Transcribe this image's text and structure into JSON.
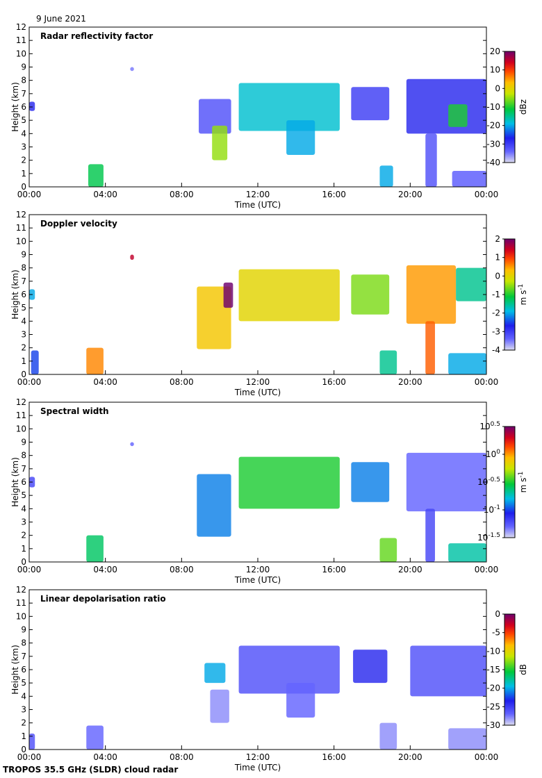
{
  "header": {
    "date": "9 June 2021"
  },
  "footer": {
    "credit": "TROPOS 35.5 GHz (SLDR) cloud radar"
  },
  "chart_data": [
    {
      "type": "heatmap",
      "title": "Radar reflectivity factor",
      "xlabel": "Time (UTC)",
      "ylabel": "Height (km)",
      "xlim": [
        0,
        24
      ],
      "ylim": [
        0,
        12
      ],
      "x_ticks": [
        "00:00",
        "04:00",
        "08:00",
        "12:00",
        "16:00",
        "20:00",
        "00:00"
      ],
      "y_ticks": [
        "0",
        "1",
        "2",
        "3",
        "4",
        "5",
        "6",
        "7",
        "8",
        "9",
        "10",
        "11",
        "12"
      ],
      "colorbar": {
        "label": "dBz",
        "min": -40,
        "max": 20,
        "ticks": [
          "20",
          "10",
          "0",
          "-10",
          "-20",
          "-30",
          "-40"
        ],
        "scale": "linear"
      },
      "cloud_regions": [
        {
          "t0": 0.0,
          "t1": 0.3,
          "h0": 5.7,
          "h1": 6.4,
          "value": -28
        },
        {
          "t0": 3.1,
          "t1": 3.9,
          "h0": 0.0,
          "h1": 1.7,
          "value": -12
        },
        {
          "t0": 5.3,
          "t1": 5.5,
          "h0": 8.7,
          "h1": 9.0,
          "value": -35
        },
        {
          "t0": 8.9,
          "t1": 10.6,
          "h0": 4.0,
          "h1": 6.6,
          "value": -32
        },
        {
          "t0": 9.6,
          "t1": 10.4,
          "h0": 2.0,
          "h1": 4.6,
          "value": -5
        },
        {
          "t0": 11.0,
          "t1": 16.3,
          "h0": 4.2,
          "h1": 7.8,
          "value": -18
        },
        {
          "t0": 13.5,
          "t1": 15.0,
          "h0": 2.4,
          "h1": 5.0,
          "value": -20
        },
        {
          "t0": 16.9,
          "t1": 18.9,
          "h0": 5.0,
          "h1": 7.5,
          "value": -30
        },
        {
          "t0": 18.4,
          "t1": 19.1,
          "h0": 0.0,
          "h1": 1.6,
          "value": -20
        },
        {
          "t0": 19.8,
          "t1": 24.0,
          "h0": 4.0,
          "h1": 8.1,
          "value": -28
        },
        {
          "t0": 20.8,
          "t1": 21.4,
          "h0": 0.0,
          "h1": 4.0,
          "value": -32
        },
        {
          "t0": 22.0,
          "t1": 23.0,
          "h0": 4.5,
          "h1": 6.2,
          "value": -10
        },
        {
          "t0": 22.2,
          "t1": 24.0,
          "h0": 0.0,
          "h1": 1.2,
          "value": -33
        }
      ]
    },
    {
      "type": "heatmap",
      "title": "Doppler velocity",
      "xlabel": "Time (UTC)",
      "ylabel": "Height (km)",
      "xlim": [
        0,
        24
      ],
      "ylim": [
        0,
        12
      ],
      "x_ticks": [
        "00:00",
        "04:00",
        "08:00",
        "12:00",
        "16:00",
        "20:00",
        "00:00"
      ],
      "y_ticks": [
        "0",
        "1",
        "2",
        "3",
        "4",
        "5",
        "6",
        "7",
        "8",
        "9",
        "10",
        "11",
        "12"
      ],
      "colorbar": {
        "label": "m s",
        "label_sup": "-1",
        "min": -4,
        "max": 2,
        "ticks": [
          "2",
          "1",
          "0",
          "-1",
          "-2",
          "-3",
          "-4"
        ],
        "scale": "linear"
      },
      "cloud_regions": [
        {
          "t0": 0.0,
          "t1": 0.3,
          "h0": 5.6,
          "h1": 6.4,
          "value": -2.0
        },
        {
          "t0": 0.1,
          "t1": 0.5,
          "h0": 0.0,
          "h1": 1.8,
          "value": -2.5
        },
        {
          "t0": 3.0,
          "t1": 3.9,
          "h0": 0.0,
          "h1": 2.0,
          "value": 0.6
        },
        {
          "t0": 5.3,
          "t1": 5.5,
          "h0": 8.6,
          "h1": 9.0,
          "value": 1.5
        },
        {
          "t0": 8.8,
          "t1": 10.6,
          "h0": 1.9,
          "h1": 6.6,
          "value": 0.2
        },
        {
          "t0": 10.2,
          "t1": 10.7,
          "h0": 5.0,
          "h1": 6.9,
          "value": 2.0
        },
        {
          "t0": 11.0,
          "t1": 16.3,
          "h0": 4.0,
          "h1": 7.9,
          "value": 0.0
        },
        {
          "t0": 16.9,
          "t1": 18.9,
          "h0": 4.5,
          "h1": 7.5,
          "value": -0.6
        },
        {
          "t0": 18.4,
          "t1": 19.3,
          "h0": 0.0,
          "h1": 1.8,
          "value": -1.5
        },
        {
          "t0": 19.8,
          "t1": 22.4,
          "h0": 3.8,
          "h1": 8.2,
          "value": 0.5
        },
        {
          "t0": 22.4,
          "t1": 24.0,
          "h0": 5.5,
          "h1": 8.0,
          "value": -1.5
        },
        {
          "t0": 20.8,
          "t1": 21.3,
          "h0": 0.0,
          "h1": 4.0,
          "value": 0.8
        },
        {
          "t0": 22.0,
          "t1": 24.0,
          "h0": 0.0,
          "h1": 1.6,
          "value": -2.0
        }
      ]
    },
    {
      "type": "heatmap",
      "title": "Spectral width",
      "xlabel": "Time (UTC)",
      "ylabel": "Height (km)",
      "xlim": [
        0,
        24
      ],
      "ylim": [
        0,
        12
      ],
      "x_ticks": [
        "00:00",
        "04:00",
        "08:00",
        "12:00",
        "16:00",
        "20:00",
        "00:00"
      ],
      "y_ticks": [
        "0",
        "1",
        "2",
        "3",
        "4",
        "5",
        "6",
        "7",
        "8",
        "9",
        "10",
        "11",
        "12"
      ],
      "colorbar": {
        "label": "m s",
        "label_sup": "-1",
        "min": -1.5,
        "max": 0.5,
        "ticks": [
          "10^0.5",
          "10^0",
          "10^-0.5",
          "10^-1",
          "10^-1.5"
        ],
        "scale": "log10"
      },
      "cloud_regions": [
        {
          "t0": 0.0,
          "t1": 0.3,
          "h0": 5.6,
          "h1": 6.4,
          "value": -1.2
        },
        {
          "t0": 3.0,
          "t1": 3.9,
          "h0": 0.0,
          "h1": 2.0,
          "value": -0.6
        },
        {
          "t0": 5.3,
          "t1": 5.5,
          "h0": 8.7,
          "h1": 9.0,
          "value": -1.3
        },
        {
          "t0": 8.8,
          "t1": 10.6,
          "h0": 1.9,
          "h1": 6.6,
          "value": -0.9
        },
        {
          "t0": 11.0,
          "t1": 16.3,
          "h0": 4.0,
          "h1": 7.9,
          "value": -0.5
        },
        {
          "t0": 16.9,
          "t1": 18.9,
          "h0": 4.5,
          "h1": 7.5,
          "value": -0.9
        },
        {
          "t0": 18.4,
          "t1": 19.3,
          "h0": 0.0,
          "h1": 1.8,
          "value": -0.4
        },
        {
          "t0": 19.8,
          "t1": 24.0,
          "h0": 3.8,
          "h1": 8.2,
          "value": -1.3
        },
        {
          "t0": 20.8,
          "t1": 21.3,
          "h0": 0.0,
          "h1": 4.0,
          "value": -1.2
        },
        {
          "t0": 22.0,
          "t1": 24.0,
          "h0": 0.0,
          "h1": 1.4,
          "value": -0.7
        }
      ]
    },
    {
      "type": "heatmap",
      "title": "Linear depolarisation ratio",
      "xlabel": "Time (UTC)",
      "ylabel": "Height (km)",
      "xlim": [
        0,
        24
      ],
      "ylim": [
        0,
        12
      ],
      "x_ticks": [
        "00:00",
        "04:00",
        "08:00",
        "12:00",
        "16:00",
        "20:00",
        "00:00"
      ],
      "y_ticks": [
        "0",
        "1",
        "2",
        "3",
        "4",
        "5",
        "6",
        "7",
        "8",
        "9",
        "10",
        "11",
        "12"
      ],
      "colorbar": {
        "label": "dB",
        "min": -30,
        "max": 0,
        "ticks": [
          "0",
          "-5",
          "-10",
          "-15",
          "-20",
          "-25",
          "-30"
        ],
        "scale": "linear"
      },
      "cloud_regions": [
        {
          "t0": 0.0,
          "t1": 0.3,
          "h0": 0.0,
          "h1": 1.2,
          "value": -26
        },
        {
          "t0": 3.0,
          "t1": 3.9,
          "h0": 0.0,
          "h1": 1.8,
          "value": -27
        },
        {
          "t0": 9.5,
          "t1": 10.5,
          "h0": 2.0,
          "h1": 4.5,
          "value": -28
        },
        {
          "t0": 9.2,
          "t1": 10.3,
          "h0": 5.0,
          "h1": 6.5,
          "value": -20
        },
        {
          "t0": 11.0,
          "t1": 16.3,
          "h0": 4.2,
          "h1": 7.8,
          "value": -26
        },
        {
          "t0": 13.5,
          "t1": 15.0,
          "h0": 2.4,
          "h1": 5.0,
          "value": -27
        },
        {
          "t0": 17.0,
          "t1": 18.8,
          "h0": 5.0,
          "h1": 7.5,
          "value": -24
        },
        {
          "t0": 18.4,
          "t1": 19.3,
          "h0": 0.0,
          "h1": 2.0,
          "value": -28
        },
        {
          "t0": 20.0,
          "t1": 24.0,
          "h0": 4.0,
          "h1": 7.8,
          "value": -26
        },
        {
          "t0": 22.0,
          "t1": 24.0,
          "h0": 0.0,
          "h1": 1.6,
          "value": -28
        }
      ]
    }
  ]
}
